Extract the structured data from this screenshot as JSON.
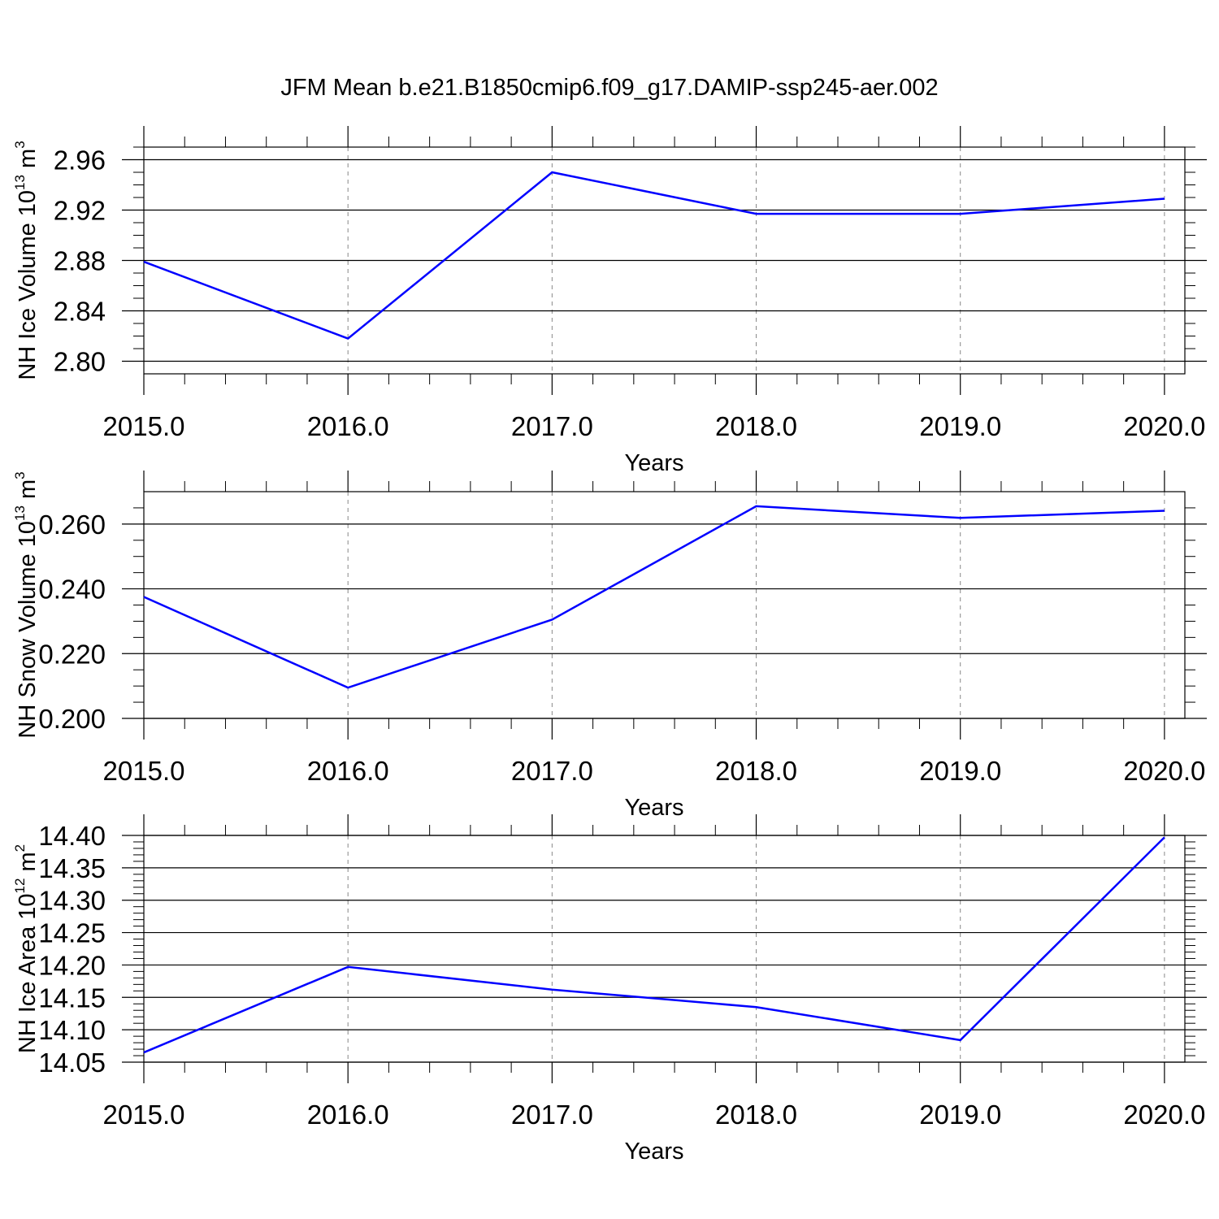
{
  "figure": {
    "title": "JFM Mean b.e21.B1850cmip6.f09_g17.DAMIP-ssp245-aer.002",
    "line_color": "#0000ff",
    "grid_color": "#888888"
  },
  "chart_data": [
    {
      "type": "line",
      "title": "",
      "xlabel": "Years",
      "ylabel_parts": [
        "NH Ice Volume 10",
        "13",
        " m",
        "3"
      ],
      "x": [
        2015,
        2016,
        2017,
        2018,
        2019,
        2020
      ],
      "xlim": [
        2015,
        2020.1
      ],
      "xtick_values": [
        2015,
        2016,
        2017,
        2018,
        2019,
        2020
      ],
      "xtick_labels": [
        "2015.0",
        "2016.0",
        "2017.0",
        "2018.0",
        "2019.0",
        "2020.0"
      ],
      "ylim": [
        2.79,
        2.97
      ],
      "ytick_values": [
        2.8,
        2.84,
        2.88,
        2.92,
        2.96
      ],
      "ytick_labels": [
        "2.80",
        "2.84",
        "2.88",
        "2.92",
        "2.96"
      ],
      "series": [
        {
          "values": [
            2.879,
            2.818,
            2.95,
            2.917,
            2.917,
            2.929
          ]
        }
      ],
      "grid": "vertical dashed at major x ticks"
    },
    {
      "type": "line",
      "title": "",
      "xlabel": "Years",
      "ylabel_parts": [
        "NH Snow Volume 10",
        "13",
        " m",
        "3"
      ],
      "x": [
        2015,
        2016,
        2017,
        2018,
        2019,
        2020
      ],
      "xlim": [
        2015,
        2020.1
      ],
      "xtick_values": [
        2015,
        2016,
        2017,
        2018,
        2019,
        2020
      ],
      "xtick_labels": [
        "2015.0",
        "2016.0",
        "2017.0",
        "2018.0",
        "2019.0",
        "2020.0"
      ],
      "ylim": [
        0.2,
        0.27
      ],
      "ytick_values": [
        0.2,
        0.22,
        0.24,
        0.26
      ],
      "ytick_labels": [
        "0.200",
        "0.220",
        "0.240",
        "0.260"
      ],
      "series": [
        {
          "values": [
            0.2375,
            0.2095,
            0.2305,
            0.2655,
            0.2619,
            0.2641
          ]
        }
      ],
      "grid": "vertical dashed at major x ticks"
    },
    {
      "type": "line",
      "title": "",
      "xlabel": "Years",
      "ylabel_parts": [
        "NH Ice Area 10",
        "12",
        " m",
        "2"
      ],
      "x": [
        2015,
        2016,
        2017,
        2018,
        2019,
        2020
      ],
      "xlim": [
        2015,
        2020.1
      ],
      "xtick_values": [
        2015,
        2016,
        2017,
        2018,
        2019,
        2020
      ],
      "xtick_labels": [
        "2015.0",
        "2016.0",
        "2017.0",
        "2018.0",
        "2019.0",
        "2020.0"
      ],
      "ylim": [
        14.05,
        14.4
      ],
      "ytick_values": [
        14.05,
        14.1,
        14.15,
        14.2,
        14.25,
        14.3,
        14.35,
        14.4
      ],
      "ytick_labels": [
        "14.05",
        "14.10",
        "14.15",
        "14.20",
        "14.25",
        "14.30",
        "14.35",
        "14.40"
      ],
      "series": [
        {
          "values": [
            14.065,
            14.197,
            14.162,
            14.135,
            14.084,
            14.397
          ]
        }
      ],
      "grid": "vertical dashed at major x ticks"
    }
  ]
}
